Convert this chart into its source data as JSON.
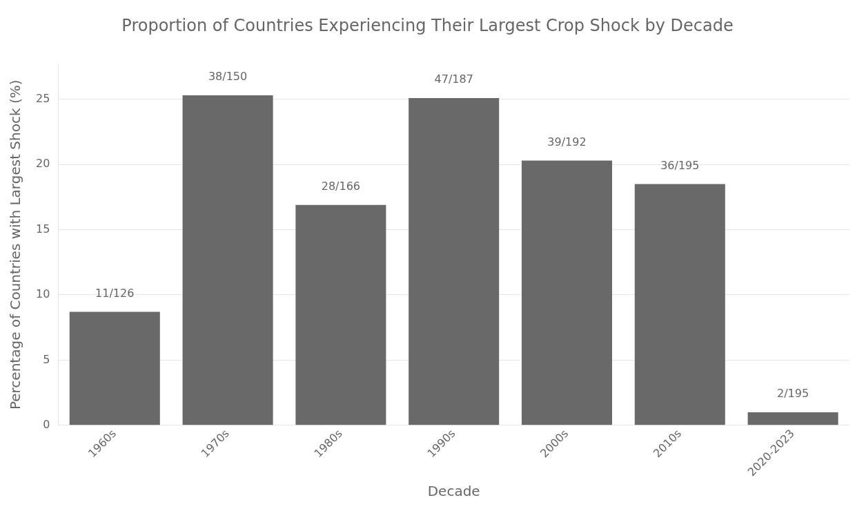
{
  "chart_data": {
    "type": "bar",
    "title": "Proportion of Countries Experiencing Their Largest Crop Shock by Decade",
    "xlabel": "Decade",
    "ylabel": "Percentage of Countries with Largest Shock (%)",
    "categories": [
      "1960s",
      "1970s",
      "1980s",
      "1990s",
      "2000s",
      "2010s",
      "2020-2023"
    ],
    "values": [
      8.7,
      25.3,
      16.9,
      25.1,
      20.3,
      18.5,
      1.0
    ],
    "value_labels": [
      "11/126",
      "38/150",
      "28/166",
      "47/187",
      "39/192",
      "36/195",
      "2/195"
    ],
    "color": "#696969",
    "ylim": [
      0,
      27.7
    ],
    "yticks": [
      0,
      5,
      10,
      15,
      20,
      25
    ],
    "grid": "y",
    "legend": false
  }
}
